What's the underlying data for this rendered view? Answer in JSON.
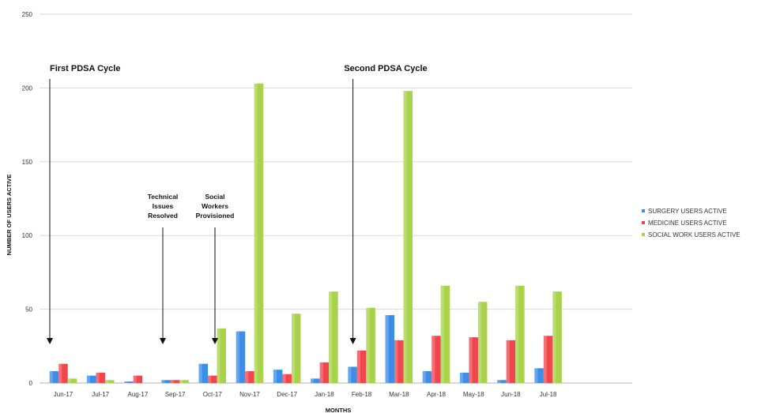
{
  "chart_data": {
    "type": "bar",
    "xlabel": "MONTHS",
    "ylabel": "NUMBER OF USERS ACTIVE",
    "ylim": [
      0,
      250
    ],
    "yticks": [
      "0",
      "50",
      "100",
      "150",
      "200",
      "250"
    ],
    "grid": true,
    "legend_position": "right",
    "categories": [
      "Jun-17",
      "Jul-17",
      "Aug-17",
      "Sep-17",
      "Oct-17",
      "Nov-17",
      "Dec-17",
      "Jan-18",
      "Feb-18",
      "Mar-18",
      "Apr-18",
      "May-18",
      "Jun-18",
      "Jul-18"
    ],
    "series": [
      {
        "name": "SURGERY USERS ACTIVE",
        "color": "#3d8ee8",
        "values": [
          8,
          5,
          1,
          2,
          13,
          35,
          9,
          3,
          11,
          46,
          8,
          7,
          2,
          10
        ]
      },
      {
        "name": "MEDICINE USERS ACTIVE",
        "color": "#f0474f",
        "values": [
          13,
          7,
          5,
          2,
          5,
          8,
          6,
          14,
          22,
          29,
          32,
          31,
          29,
          32
        ]
      },
      {
        "name": "SOCIAL WORK USERS ACTIVE",
        "color": "#a8d24a",
        "values": [
          3,
          2,
          0,
          2,
          37,
          203,
          47,
          62,
          51,
          198,
          66,
          55,
          66,
          62
        ]
      }
    ],
    "annotations": [
      {
        "text": "First PDSA Cycle",
        "category": "Jun-17",
        "style": "cycle"
      },
      {
        "text": "Technical\nIssues\nResolved",
        "category": "Aug-17",
        "style": "note"
      },
      {
        "text": "Social\nWorkers\nProvisioned",
        "category": "Sep-17",
        "style": "note"
      },
      {
        "text": "Second PDSA Cycle",
        "category": "Feb-18",
        "style": "cycle"
      }
    ]
  }
}
